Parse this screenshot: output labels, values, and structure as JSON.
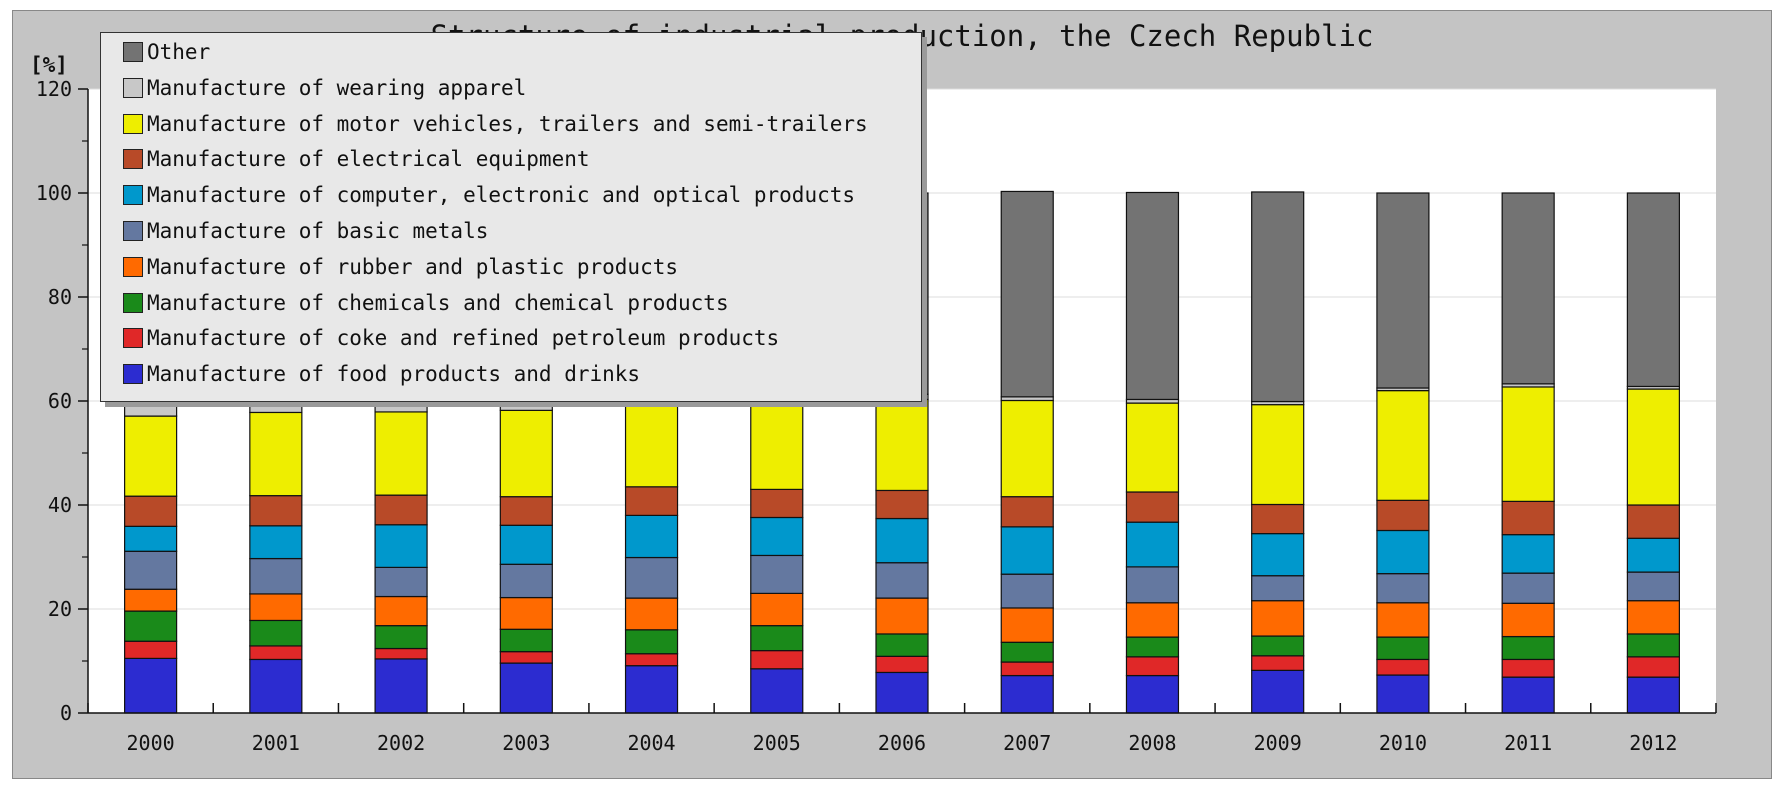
{
  "chart_data": {
    "type": "bar",
    "stacked": true,
    "title": "Structure of industrial production, the Czech Republic",
    "ylabel": "[%]",
    "xlabel": "",
    "ylim": [
      0,
      120
    ],
    "yticks": [
      "0",
      "20",
      "40",
      "60",
      "80",
      "100",
      "120"
    ],
    "grid": true,
    "legend_position": "top-left",
    "categories": [
      "2000",
      "2001",
      "2002",
      "2003",
      "2004",
      "2005",
      "2006",
      "2007",
      "2008",
      "2009",
      "2010",
      "2011",
      "2012"
    ],
    "series": [
      {
        "name": "Manufacture of food products and drinks",
        "color": "#2c2cd0",
        "values": [
          10.5,
          10.3,
          10.4,
          9.6,
          9.1,
          8.5,
          7.8,
          7.2,
          7.2,
          8.2,
          7.3,
          6.9,
          6.9
        ]
      },
      {
        "name": "Manufacture of coke and refined petroleum products",
        "color": "#e02828",
        "values": [
          3.3,
          2.6,
          2.0,
          2.2,
          2.3,
          3.5,
          3.1,
          2.6,
          3.6,
          2.8,
          3.0,
          3.4,
          3.9
        ]
      },
      {
        "name": "Manufacture of chemicals and chemical products",
        "color": "#1a8a1a",
        "values": [
          5.8,
          4.9,
          4.4,
          4.3,
          4.6,
          4.8,
          4.3,
          3.8,
          3.8,
          3.8,
          4.3,
          4.4,
          4.4
        ]
      },
      {
        "name": "Manufacture of rubber and plastic products",
        "color": "#ff6a00",
        "values": [
          4.2,
          5.1,
          5.6,
          6.1,
          6.1,
          6.2,
          6.9,
          6.6,
          6.6,
          6.8,
          6.6,
          6.4,
          6.4
        ]
      },
      {
        "name": "Manufacture of basic metals",
        "color": "#6478a0",
        "values": [
          7.3,
          6.8,
          5.6,
          6.4,
          7.8,
          7.3,
          6.8,
          6.5,
          6.9,
          4.8,
          5.6,
          5.8,
          5.5
        ]
      },
      {
        "name": "Manufacture of computer, electronic and optical products",
        "color": "#0098cc",
        "values": [
          4.8,
          6.3,
          8.2,
          7.5,
          8.1,
          7.3,
          8.5,
          9.1,
          8.6,
          8.1,
          8.3,
          7.4,
          6.5
        ]
      },
      {
        "name": "Manufacture of electrical equipment",
        "color": "#b84a28",
        "values": [
          5.8,
          5.8,
          5.7,
          5.5,
          5.5,
          5.4,
          5.4,
          5.8,
          5.8,
          5.6,
          5.8,
          6.4,
          6.4
        ]
      },
      {
        "name": "Manufacture of motor vehicles, trailers and semi-trailers",
        "color": "#eeee00",
        "values": [
          15.4,
          16.0,
          16.0,
          16.6,
          16.5,
          17.0,
          17.5,
          18.5,
          17.1,
          19.2,
          21.1,
          22.0,
          22.3
        ]
      },
      {
        "name": "Manufacture of wearing apparel",
        "color": "#c8c8c8",
        "values": [
          2.5,
          2.0,
          1.8,
          1.6,
          1.5,
          1.2,
          1.0,
          0.7,
          0.7,
          0.6,
          0.5,
          0.6,
          0.5
        ]
      },
      {
        "name": "Other",
        "color": "#737373",
        "values": [
          40.4,
          40.2,
          40.3,
          40.2,
          40.5,
          38.8,
          38.7,
          39.5,
          39.8,
          40.3,
          37.5,
          36.7,
          37.2
        ]
      }
    ]
  }
}
